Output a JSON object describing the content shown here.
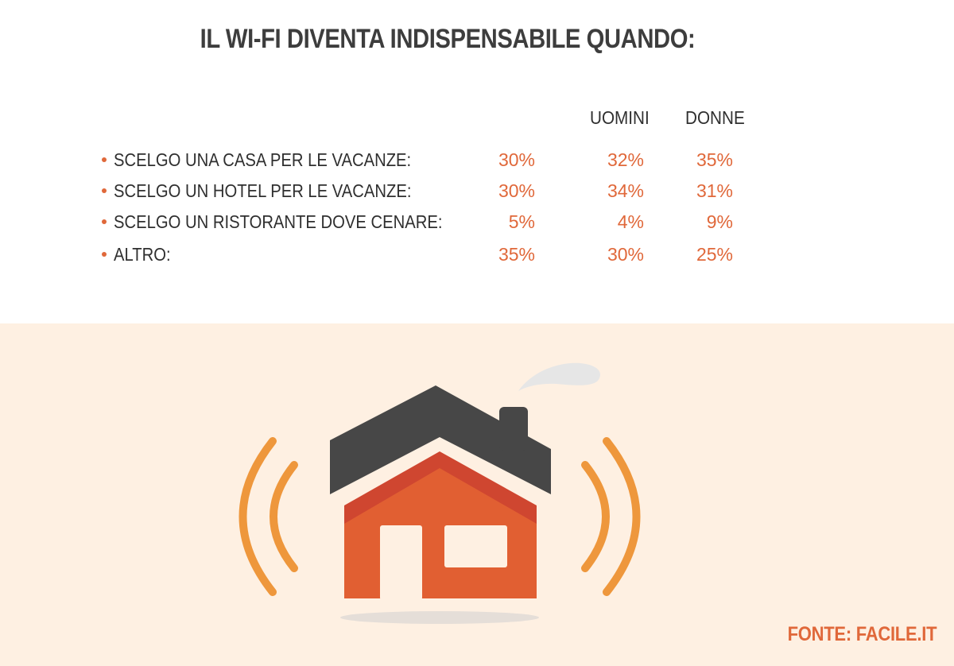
{
  "chart_data": {
    "type": "table",
    "title": "IL WI-FI DIVENTA INDISPENSABILE QUANDO:",
    "columns": [
      "",
      "UOMINI",
      "DONNE"
    ],
    "rows": [
      {
        "label": "SCELGO UNA CASA PER LE VACANZE:",
        "values": [
          "30%",
          "32%",
          "35%"
        ]
      },
      {
        "label": "SCELGO UN HOTEL PER LE VACANZE:",
        "values": [
          "30%",
          "34%",
          "31%"
        ]
      },
      {
        "label": "SCELGO UN RISTORANTE DOVE CENARE:",
        "values": [
          "5%",
          "4%",
          "9%"
        ]
      },
      {
        "label": "ALTRO:",
        "values": [
          "35%",
          "30%",
          "25%"
        ]
      }
    ]
  },
  "source": "FONTE: FACILE.IT",
  "illustration": {
    "icon": "wifi-house-icon",
    "colors": {
      "roof": "#474747",
      "wall": "#e15f32",
      "gable_band": "#cf4630",
      "signal": "#ee973c",
      "smoke": "#e6e6e6",
      "shadow": "#e5ded8",
      "background": "#fef0e2"
    }
  }
}
